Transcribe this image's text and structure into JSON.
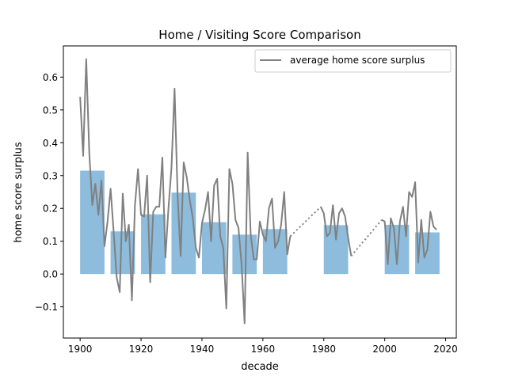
{
  "chart_data": {
    "type": "bar",
    "title": "Home / Visiting Score Comparison",
    "xlabel": "decade",
    "ylabel": "home score surplus",
    "xlim": [
      1894.5,
      2023.5
    ],
    "ylim": [
      -0.195,
      0.695
    ],
    "xticks": [
      1900,
      1920,
      1940,
      1960,
      1980,
      2000,
      2020
    ],
    "yticks": [
      -0.1,
      0.0,
      0.1,
      0.2,
      0.3,
      0.4,
      0.5,
      0.6
    ],
    "ytick_labels": [
      "−0.1",
      "0.0",
      "0.1",
      "0.2",
      "0.3",
      "0.4",
      "0.5",
      "0.6"
    ],
    "legend": {
      "position": "top-right",
      "entries": [
        "average home score surplus"
      ]
    },
    "bar_color": "#8ebcdc",
    "line_color": "#808080",
    "bars": {
      "decades": [
        1900,
        1910,
        1920,
        1930,
        1940,
        1950,
        1960,
        1980,
        2000,
        2010
      ],
      "values": [
        0.315,
        0.13,
        0.182,
        0.248,
        0.158,
        0.12,
        0.137,
        0.149,
        0.15,
        0.127
      ],
      "width": 8
    },
    "series": [
      {
        "name": "average home score surplus",
        "segments": [
          {
            "x": [
              1900,
              1901,
              1902,
              1903,
              1904,
              1905,
              1906,
              1907,
              1908,
              1909,
              1910,
              1911,
              1912,
              1913,
              1914,
              1915,
              1916,
              1917,
              1918,
              1919,
              1920,
              1921,
              1922,
              1923,
              1924,
              1925,
              1926,
              1927,
              1928,
              1929,
              1930,
              1931,
              1932,
              1933,
              1934,
              1935,
              1936,
              1937,
              1938,
              1939,
              1940,
              1941,
              1942,
              1943,
              1944,
              1945,
              1946,
              1947,
              1948,
              1949,
              1950,
              1951,
              1952,
              1953,
              1954,
              1955,
              1956,
              1957,
              1958,
              1959,
              1960,
              1961,
              1962,
              1963,
              1964,
              1965,
              1966,
              1967,
              1968,
              1969
            ],
            "y": [
              0.54,
              0.36,
              0.655,
              0.37,
              0.21,
              0.275,
              0.18,
              0.285,
              0.085,
              0.16,
              0.26,
              0.13,
              -0.01,
              -0.055,
              0.245,
              0.1,
              0.15,
              -0.08,
              0.21,
              0.32,
              0.18,
              0.175,
              0.3,
              -0.025,
              0.19,
              0.205,
              0.205,
              0.355,
              0.05,
              0.2,
              0.325,
              0.565,
              0.24,
              0.055,
              0.34,
              0.295,
              0.225,
              0.17,
              0.08,
              0.05,
              0.155,
              0.195,
              0.25,
              0.1,
              0.27,
              0.29,
              0.115,
              0.08,
              -0.105,
              0.32,
              0.275,
              0.165,
              0.14,
              0.03,
              -0.15,
              0.37,
              0.12,
              0.045,
              0.045,
              0.16,
              0.12,
              0.1,
              0.2,
              0.23,
              0.08,
              0.1,
              0.15,
              0.25,
              0.06,
              0.115
            ]
          },
          {
            "x": [
              1979,
              1980,
              1981,
              1982,
              1983,
              1984,
              1985,
              1986,
              1987,
              1988,
              1989
            ],
            "y": [
              0.205,
              0.185,
              0.115,
              0.125,
              0.21,
              0.105,
              0.185,
              0.2,
              0.175,
              0.11,
              0.055
            ]
          },
          {
            "x": [
              1999,
              2000,
              2001,
              2002,
              2003,
              2004,
              2005,
              2006,
              2007,
              2008,
              2009,
              2010,
              2011,
              2012,
              2013,
              2014,
              2015,
              2016,
              2017
            ],
            "y": [
              0.165,
              0.16,
              0.03,
              0.17,
              0.14,
              0.03,
              0.16,
              0.205,
              0.115,
              0.25,
              0.235,
              0.28,
              0.035,
              0.165,
              0.05,
              0.075,
              0.19,
              0.145,
              0.135
            ]
          }
        ],
        "dotted_gaps": [
          {
            "x": [
              1969,
              1979
            ],
            "y": [
              0.115,
              0.205
            ]
          },
          {
            "x": [
              1989,
              1999
            ],
            "y": [
              0.055,
              0.165
            ]
          }
        ]
      }
    ]
  }
}
